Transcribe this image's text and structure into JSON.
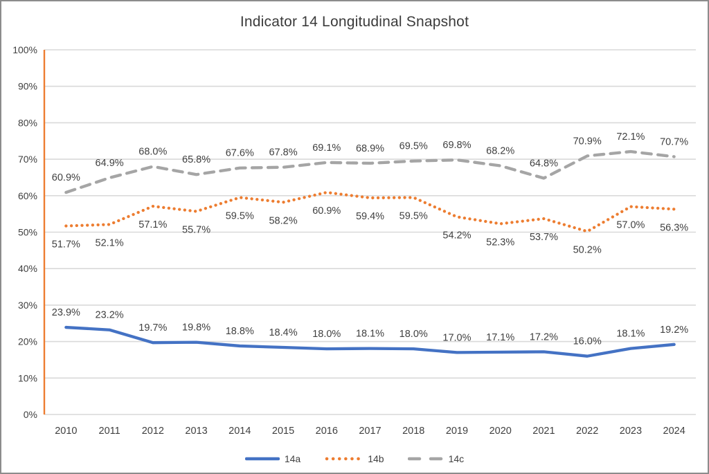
{
  "window": {
    "background_color": "#ffffff",
    "border_color": "#8c8c8c"
  },
  "chart_data": {
    "type": "line",
    "title": "Indicator 14 Longitudinal Snapshot",
    "categories": [
      "2010",
      "2011",
      "2012",
      "2013",
      "2014",
      "2015",
      "2016",
      "2017",
      "2018",
      "2019",
      "2020",
      "2021",
      "2022",
      "2023",
      "2024"
    ],
    "series": [
      {
        "name": "14a",
        "style": "solid",
        "color": "#4472C4",
        "label_position": "above",
        "values": [
          23.9,
          23.2,
          19.7,
          19.8,
          18.8,
          18.4,
          18.0,
          18.1,
          18.0,
          17.0,
          17.1,
          17.2,
          16.0,
          18.1,
          19.2
        ]
      },
      {
        "name": "14b",
        "style": "dotted",
        "color": "#ED7D31",
        "label_position": "below",
        "values": [
          51.7,
          52.1,
          57.1,
          55.7,
          59.5,
          58.2,
          60.9,
          59.4,
          59.5,
          54.2,
          52.3,
          53.7,
          50.2,
          57.0,
          56.3
        ]
      },
      {
        "name": "14c",
        "style": "dashed",
        "color": "#A5A5A5",
        "label_position": "above",
        "values": [
          60.9,
          64.9,
          68.0,
          65.8,
          67.6,
          67.8,
          69.1,
          68.9,
          69.5,
          69.8,
          68.2,
          64.8,
          70.9,
          72.1,
          70.7
        ]
      }
    ],
    "xlabel": "",
    "ylabel": "",
    "ylim": [
      0,
      100
    ],
    "ytick_step": 10,
    "ytick_labels": [
      "0%",
      "10%",
      "20%",
      "30%",
      "40%",
      "50%",
      "60%",
      "70%",
      "80%",
      "90%",
      "100%"
    ],
    "data_label_suffix": "%",
    "grid": "horizontal",
    "legend_position": "bottom",
    "gridline_color": "#D9D9D9",
    "y_axis_color": "#ED7D31",
    "text_color": "#404040",
    "title_color": "#3b3b3b"
  }
}
